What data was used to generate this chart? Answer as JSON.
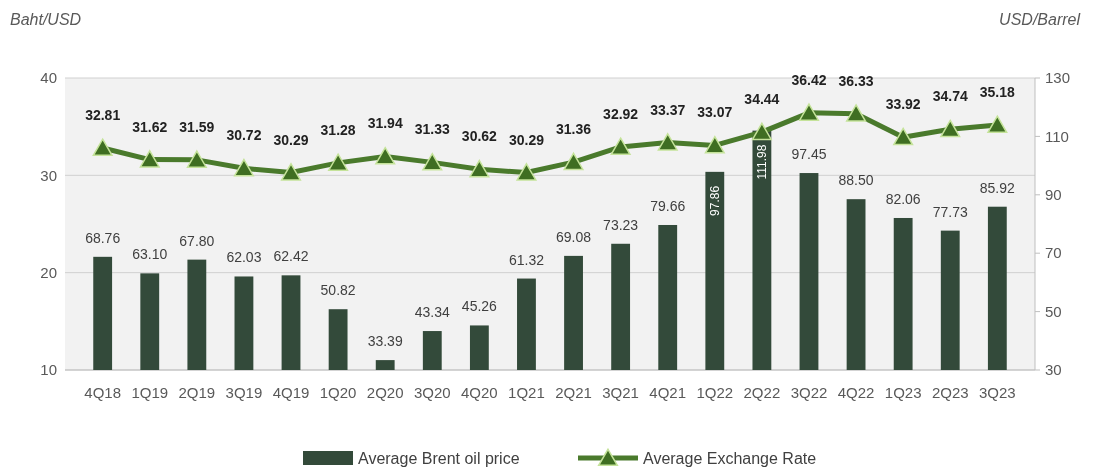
{
  "chart_data": {
    "type": "bar",
    "ylabel": "Baht/USD",
    "y2label": "USD/Barrel",
    "categories": [
      "4Q18",
      "1Q19",
      "2Q19",
      "3Q19",
      "4Q19",
      "1Q20",
      "2Q20",
      "3Q20",
      "4Q20",
      "1Q21",
      "2Q21",
      "3Q21",
      "4Q21",
      "1Q22",
      "2Q22",
      "3Q22",
      "4Q22",
      "1Q23",
      "2Q23",
      "3Q23"
    ],
    "series": [
      {
        "name": "Average Brent oil price",
        "axis": "y2",
        "color": "#334a3a",
        "values": [
          68.76,
          63.1,
          67.8,
          62.03,
          62.42,
          50.82,
          33.39,
          43.34,
          45.26,
          61.32,
          69.08,
          73.23,
          79.66,
          97.86,
          111.98,
          97.45,
          88.5,
          82.06,
          77.73,
          85.92
        ],
        "value_labels": [
          "68.76",
          "63.10",
          "67.80",
          "62.03",
          "62.42",
          "50.82",
          "33.39",
          "43.34",
          "45.26",
          "61.32",
          "69.08",
          "73.23",
          "79.66",
          "97.86",
          "111.98",
          "97.45",
          "88.50",
          "82.06",
          "77.73",
          "85.92"
        ]
      },
      {
        "name": "Average Exchange Rate",
        "type": "line",
        "color": "#4a7a2c",
        "marker": "triangle",
        "values": [
          32.81,
          31.62,
          31.59,
          30.72,
          30.29,
          31.28,
          31.94,
          31.33,
          30.62,
          30.29,
          31.36,
          32.92,
          33.37,
          33.07,
          34.44,
          36.42,
          36.33,
          33.92,
          34.74,
          35.18
        ],
        "value_labels": [
          "32.81",
          "31.62",
          "31.59",
          "30.72",
          "30.29",
          "31.28",
          "31.94",
          "31.33",
          "30.62",
          "30.29",
          "31.36",
          "32.92",
          "33.37",
          "33.07",
          "34.44",
          "36.42",
          "36.33",
          "33.92",
          "34.74",
          "35.18"
        ]
      }
    ],
    "ylim": [
      10,
      40
    ],
    "yticks": [
      10,
      20,
      30,
      40
    ],
    "y2lim": [
      30,
      130
    ],
    "y2ticks": [
      30,
      50,
      70,
      90,
      110,
      130
    ],
    "grid": "y",
    "legend": "bottom"
  }
}
